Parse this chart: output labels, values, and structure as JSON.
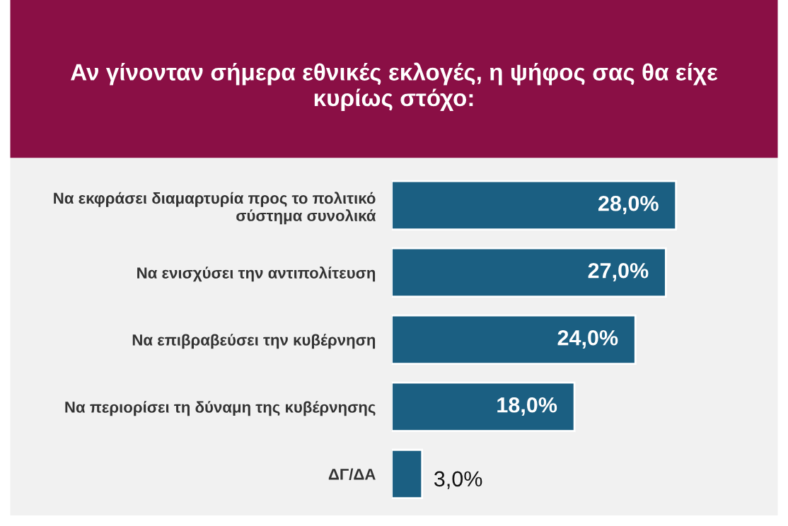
{
  "chart_data": {
    "type": "bar",
    "orientation": "horizontal",
    "title": "Αν γίνονταν σήμερα εθνικές εκλογές, η ψήφος σας θα είχε\nκυρίως στόχο:",
    "categories": [
      "Να εκφράσει διαμαρτυρία προς το πολιτικό\nσύστημα συνολικά",
      "Να ενισχύσει την αντιπολίτευση",
      "Να επιβραβεύσει την κυβέρνηση",
      "Να περιορίσει τη δύναμη της κυβέρνησης",
      "ΔΓ/ΔΑ"
    ],
    "values": [
      28,
      27,
      24,
      18,
      3
    ],
    "value_labels": [
      "28,0%",
      "27,0%",
      "24,0%",
      "18,0%",
      "3,0%"
    ],
    "color": "#1b5f82"
  }
}
